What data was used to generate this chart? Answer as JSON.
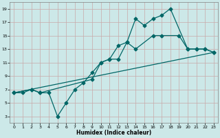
{
  "xlabel": "Humidex (Indice chaleur)",
  "background_color": "#cce8e8",
  "grid_color": "#c8a8a8",
  "line_color": "#006666",
  "xlim": [
    -0.5,
    23.5
  ],
  "ylim": [
    2.0,
    20.0
  ],
  "xticks": [
    0,
    1,
    2,
    3,
    4,
    5,
    6,
    7,
    8,
    9,
    10,
    11,
    12,
    13,
    14,
    15,
    16,
    17,
    18,
    19,
    20,
    21,
    22,
    23
  ],
  "yticks": [
    3,
    5,
    7,
    9,
    11,
    13,
    15,
    17,
    19
  ],
  "line1_x": [
    0,
    1,
    2,
    3,
    4,
    5,
    6,
    7,
    8,
    9,
    10,
    11,
    12,
    13,
    14,
    15,
    16,
    17,
    18,
    20,
    21,
    22,
    23
  ],
  "line1_y": [
    6.5,
    6.5,
    7.0,
    6.5,
    6.5,
    3.0,
    5.0,
    7.0,
    8.0,
    9.5,
    11.0,
    11.5,
    11.5,
    14.0,
    17.5,
    16.5,
    17.5,
    18.0,
    19.0,
    13.0,
    13.0,
    13.0,
    12.5
  ],
  "line2_x": [
    0,
    2,
    3,
    9,
    10,
    11,
    12,
    13,
    14,
    16,
    17,
    19,
    20,
    21,
    22,
    23
  ],
  "line2_y": [
    6.5,
    7.0,
    6.5,
    8.5,
    11.0,
    11.5,
    13.5,
    14.0,
    13.0,
    15.0,
    15.0,
    15.0,
    13.0,
    13.0,
    13.0,
    12.5
  ],
  "line3_x": [
    0,
    23
  ],
  "line3_y": [
    6.5,
    12.5
  ],
  "marker_size": 2.5,
  "line_width": 0.9
}
